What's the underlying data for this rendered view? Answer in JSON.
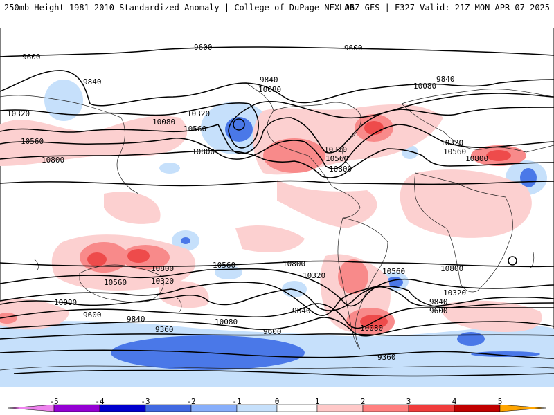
{
  "header": {
    "title": "250mb Height 1981–2010 Standardized Anomaly | College of DuPage NEXLAB",
    "run_info": "06Z GFS | F327 Valid: 21Z MON APR 07 2025"
  },
  "contour_labels": [
    "9600",
    "9840",
    "10080",
    "10320",
    "10560",
    "10800",
    "9360"
  ],
  "colorbar": {
    "ticks": [
      "-5",
      "-4",
      "-3",
      "-2",
      "-1",
      "0",
      "1",
      "2",
      "3",
      "4",
      "5"
    ],
    "colors": [
      "#ee82ee",
      "#9400d3",
      "#0000cd",
      "#4169e1",
      "#87aefa",
      "#c6e0fb",
      "#ffffff",
      "#ffc8c8",
      "#ff8080",
      "#f03c3c",
      "#c00000",
      "#ffa500",
      "#ffd700"
    ]
  },
  "colors": {
    "anomaly_neg_light": "#c6e0fb",
    "anomaly_neg_mid": "#87aefa",
    "anomaly_neg_strong": "#3d6ee6",
    "anomaly_pos_light": "#fcd0d0",
    "anomaly_pos_mid": "#f88a8a",
    "anomaly_pos_strong": "#ee4b4b"
  }
}
